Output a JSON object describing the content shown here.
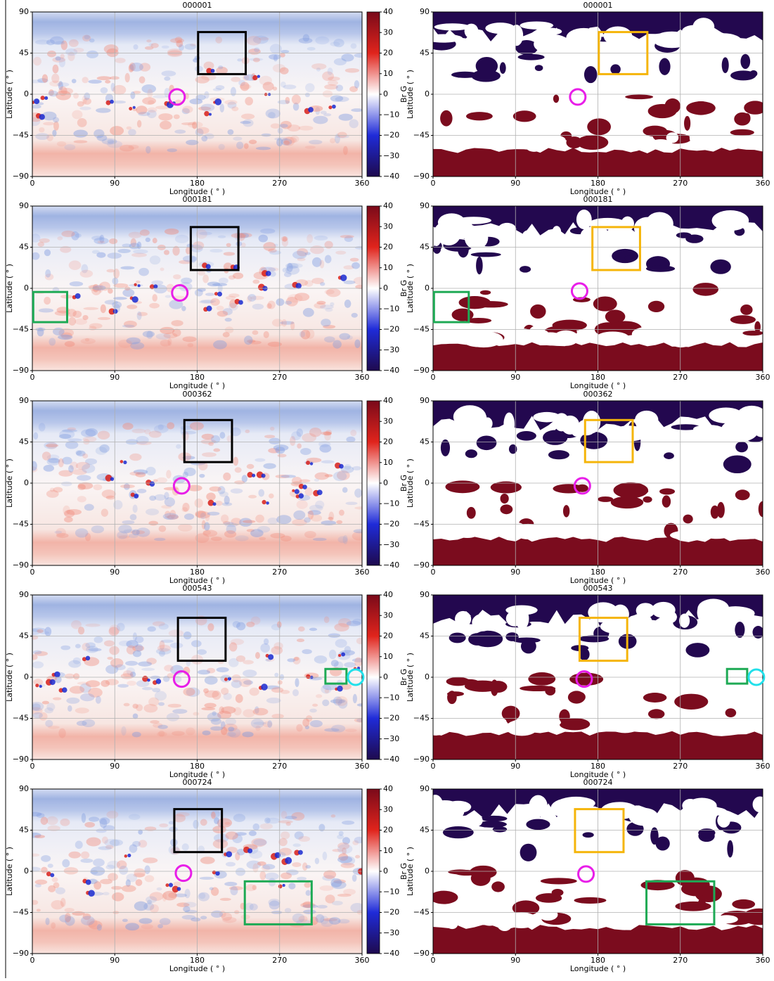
{
  "chart_data": [
    {
      "type": "heatmap",
      "title": "000001",
      "xlabel": "Longitude ( ° )",
      "ylabel": "Latitude ( ° )",
      "xlim": [
        0,
        360
      ],
      "ylim": [
        -90,
        90
      ],
      "xticks": [
        0,
        90,
        180,
        270,
        360
      ],
      "yticks": [
        {
          "value": -90,
          "label": "−90"
        },
        {
          "value": -45,
          "label": "−45"
        },
        0,
        45,
        90
      ],
      "grid": true,
      "colorbar": {
        "label": "Br G",
        "lim": [
          -40,
          40
        ],
        "ticks": [
          {
            "value": -40,
            "label": "−40"
          },
          {
            "value": -30,
            "label": "−30"
          },
          {
            "value": -20,
            "label": "−20"
          },
          {
            "value": -10,
            "label": "−10"
          },
          0,
          10,
          20,
          30,
          40
        ]
      },
      "annotations": [
        {
          "shape": "rect",
          "color": "#000000",
          "x": [
            181,
            233
          ],
          "y": [
            22,
            68
          ]
        },
        {
          "shape": "circle",
          "color": "#e81ee8",
          "x": 158,
          "y": -3
        }
      ]
    },
    {
      "type": "mask",
      "title": "000001",
      "xlabel": "Longitude ( ° )",
      "ylabel": "Latitude ( ° )",
      "xlim": [
        0,
        360
      ],
      "ylim": [
        -90,
        90
      ],
      "xticks": [
        0,
        90,
        180,
        270,
        360
      ],
      "yticks": [
        {
          "value": -90,
          "label": "−90"
        },
        {
          "value": -45,
          "label": "−45"
        },
        0,
        45,
        90
      ],
      "grid": true,
      "annotations": [
        {
          "shape": "rect",
          "color": "#f5b50a",
          "x": [
            181,
            234
          ],
          "y": [
            22,
            68
          ]
        },
        {
          "shape": "circle",
          "color": "#e81ee8",
          "x": 158,
          "y": -3
        }
      ]
    },
    {
      "type": "heatmap",
      "title": "000181",
      "xlabel": "Longitude ( ° )",
      "ylabel": "Latitude ( ° )",
      "xlim": [
        0,
        360
      ],
      "ylim": [
        -90,
        90
      ],
      "xticks": [
        0,
        90,
        180,
        270,
        360
      ],
      "yticks": [
        {
          "value": -90,
          "label": "−90"
        },
        {
          "value": -45,
          "label": "−45"
        },
        0,
        45,
        90
      ],
      "grid": true,
      "colorbar": {
        "label": "Br G",
        "lim": [
          -40,
          40
        ],
        "ticks": [
          {
            "value": -40,
            "label": "−40"
          },
          {
            "value": -30,
            "label": "−30"
          },
          {
            "value": -20,
            "label": "−20"
          },
          {
            "value": -10,
            "label": "−10"
          },
          0,
          10,
          20,
          30,
          40
        ]
      },
      "annotations": [
        {
          "shape": "rect",
          "color": "#000000",
          "x": [
            173,
            225
          ],
          "y": [
            20,
            67
          ]
        },
        {
          "shape": "circle",
          "color": "#e81ee8",
          "x": 161,
          "y": -5
        },
        {
          "shape": "rect",
          "color": "#1eaa55",
          "x": [
            1,
            38
          ],
          "y": [
            -37,
            -4
          ]
        }
      ]
    },
    {
      "type": "mask",
      "title": "000181",
      "xlabel": "Longitude ( ° )",
      "ylabel": "Latitude ( ° )",
      "xlim": [
        0,
        360
      ],
      "ylim": [
        -90,
        90
      ],
      "xticks": [
        0,
        90,
        180,
        270,
        360
      ],
      "yticks": [
        {
          "value": -90,
          "label": "−90"
        },
        {
          "value": -45,
          "label": "−45"
        },
        0,
        45,
        90
      ],
      "grid": true,
      "annotations": [
        {
          "shape": "rect",
          "color": "#f5b50a",
          "x": [
            174,
            226
          ],
          "y": [
            20,
            67
          ]
        },
        {
          "shape": "circle",
          "color": "#e81ee8",
          "x": 160,
          "y": -3
        },
        {
          "shape": "rect",
          "color": "#1eaa55",
          "x": [
            1,
            39
          ],
          "y": [
            -37,
            -4
          ]
        }
      ]
    },
    {
      "type": "heatmap",
      "title": "000362",
      "xlabel": "Longitude ( ° )",
      "ylabel": "Latitude ( ° )",
      "xlim": [
        0,
        360
      ],
      "ylim": [
        -90,
        90
      ],
      "xticks": [
        0,
        90,
        180,
        270,
        360
      ],
      "yticks": [
        {
          "value": -90,
          "label": "−90"
        },
        {
          "value": -45,
          "label": "−45"
        },
        0,
        45,
        90
      ],
      "grid": true,
      "colorbar": {
        "label": "Br G",
        "lim": [
          -40,
          40
        ],
        "ticks": [
          {
            "value": -40,
            "label": "−40"
          },
          {
            "value": -30,
            "label": "−30"
          },
          {
            "value": -20,
            "label": "−20"
          },
          {
            "value": -10,
            "label": "−10"
          },
          0,
          10,
          20,
          30,
          40
        ]
      },
      "annotations": [
        {
          "shape": "rect",
          "color": "#000000",
          "x": [
            166,
            218
          ],
          "y": [
            23,
            69
          ]
        },
        {
          "shape": "circle",
          "color": "#e81ee8",
          "x": 163,
          "y": -3
        }
      ]
    },
    {
      "type": "mask",
      "title": "000362",
      "xlabel": "Longitude ( ° )",
      "ylabel": "Latitude ( ° )",
      "xlim": [
        0,
        360
      ],
      "ylim": [
        -90,
        90
      ],
      "xticks": [
        0,
        90,
        180,
        270,
        360
      ],
      "yticks": [
        {
          "value": -90,
          "label": "−90"
        },
        {
          "value": -45,
          "label": "−45"
        },
        0,
        45,
        90
      ],
      "grid": true,
      "annotations": [
        {
          "shape": "rect",
          "color": "#f5b50a",
          "x": [
            166,
            218
          ],
          "y": [
            23,
            69
          ]
        },
        {
          "shape": "circle",
          "color": "#e81ee8",
          "x": 163,
          "y": -3
        }
      ]
    },
    {
      "type": "heatmap",
      "title": "000543",
      "xlabel": "Longitude ( ° )",
      "ylabel": "Latitude ( ° )",
      "xlim": [
        0,
        360
      ],
      "ylim": [
        -90,
        90
      ],
      "xticks": [
        0,
        90,
        180,
        270,
        360
      ],
      "yticks": [
        {
          "value": -90,
          "label": "−90"
        },
        {
          "value": -45,
          "label": "−45"
        },
        0,
        45,
        90
      ],
      "grid": true,
      "colorbar": {
        "label": "Br G",
        "lim": [
          -40,
          40
        ],
        "ticks": [
          {
            "value": -40,
            "label": "−40"
          },
          {
            "value": -30,
            "label": "−30"
          },
          {
            "value": -20,
            "label": "−20"
          },
          {
            "value": -10,
            "label": "−10"
          },
          0,
          10,
          20,
          30,
          40
        ]
      },
      "annotations": [
        {
          "shape": "rect",
          "color": "#000000",
          "x": [
            159,
            211
          ],
          "y": [
            18,
            65
          ]
        },
        {
          "shape": "circle",
          "color": "#e81ee8",
          "x": 163,
          "y": -2
        },
        {
          "shape": "rect",
          "color": "#1eaa55",
          "x": [
            320,
            343
          ],
          "y": [
            -7,
            9
          ]
        },
        {
          "shape": "circle",
          "color": "#22e0ea",
          "x": 353,
          "y": 0
        }
      ]
    },
    {
      "type": "mask",
      "title": "000543",
      "xlabel": "Longitude ( ° )",
      "ylabel": "Latitude ( ° )",
      "xlim": [
        0,
        360
      ],
      "ylim": [
        -90,
        90
      ],
      "xticks": [
        0,
        90,
        180,
        270,
        360
      ],
      "yticks": [
        {
          "value": -90,
          "label": "−90"
        },
        {
          "value": -45,
          "label": "−45"
        },
        0,
        45,
        90
      ],
      "grid": true,
      "annotations": [
        {
          "shape": "rect",
          "color": "#f5b50a",
          "x": [
            160,
            212
          ],
          "y": [
            18,
            65
          ]
        },
        {
          "shape": "circle",
          "color": "#e81ee8",
          "x": 165,
          "y": -2
        },
        {
          "shape": "rect",
          "color": "#1eaa55",
          "x": [
            321,
            343
          ],
          "y": [
            -7,
            9
          ]
        },
        {
          "shape": "circle",
          "color": "#22e0ea",
          "x": 353,
          "y": 0
        }
      ]
    },
    {
      "type": "heatmap",
      "title": "000724",
      "xlabel": "Longitude ( ° )",
      "ylabel": "Latitude ( ° )",
      "xlim": [
        0,
        360
      ],
      "ylim": [
        -90,
        90
      ],
      "xticks": [
        0,
        90,
        180,
        270,
        360
      ],
      "yticks": [
        {
          "value": -90,
          "label": "−90"
        },
        {
          "value": -45,
          "label": "−45"
        },
        0,
        45,
        90
      ],
      "grid": true,
      "colorbar": {
        "label": "Br G",
        "lim": [
          -40,
          40
        ],
        "ticks": [
          {
            "value": -40,
            "label": "−40"
          },
          {
            "value": -30,
            "label": "−30"
          },
          {
            "value": -20,
            "label": "−20"
          },
          {
            "value": -10,
            "label": "−10"
          },
          0,
          10,
          20,
          30,
          40
        ]
      },
      "annotations": [
        {
          "shape": "rect",
          "color": "#000000",
          "x": [
            155,
            207
          ],
          "y": [
            21,
            68
          ]
        },
        {
          "shape": "circle",
          "color": "#e81ee8",
          "x": 165,
          "y": -2
        },
        {
          "shape": "rect",
          "color": "#1eaa55",
          "x": [
            232,
            305
          ],
          "y": [
            -58,
            -11
          ]
        }
      ]
    },
    {
      "type": "mask",
      "title": "000724",
      "xlabel": "Longitude ( ° )",
      "ylabel": "Latitude ( ° )",
      "xlim": [
        0,
        360
      ],
      "ylim": [
        -90,
        90
      ],
      "xticks": [
        0,
        90,
        180,
        270,
        360
      ],
      "yticks": [
        {
          "value": -90,
          "label": "−90"
        },
        {
          "value": -45,
          "label": "−45"
        },
        0,
        45,
        90
      ],
      "grid": true,
      "annotations": [
        {
          "shape": "rect",
          "color": "#f5b50a",
          "x": [
            155,
            208
          ],
          "y": [
            21,
            68
          ]
        },
        {
          "shape": "circle",
          "color": "#e81ee8",
          "x": 167,
          "y": -3
        },
        {
          "shape": "rect",
          "color": "#1eaa55",
          "x": [
            233,
            307
          ],
          "y": [
            -58,
            -11
          ]
        }
      ]
    }
  ]
}
